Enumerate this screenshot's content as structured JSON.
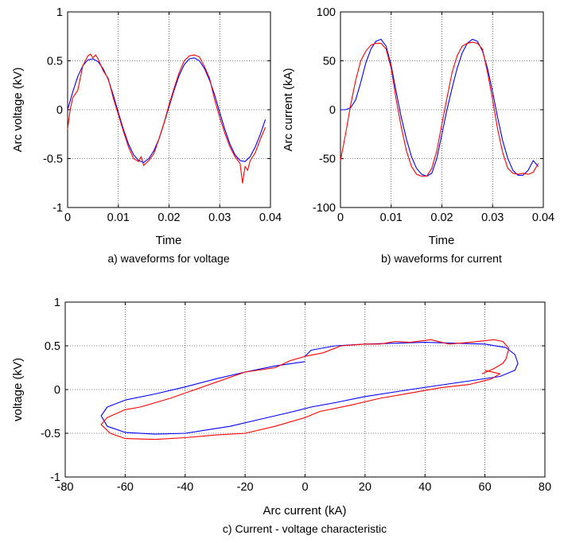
{
  "chart_data": [
    {
      "id": "a",
      "type": "line",
      "caption": "a) waveforms for voltage",
      "xlabel": "Time",
      "ylabel": "Arc voltage (kV)",
      "xlim": [
        0,
        0.04
      ],
      "ylim": [
        -1,
        1
      ],
      "xticks": [
        "0",
        "0.01",
        "0.02",
        "0.03",
        "0.04"
      ],
      "yticks": [
        "-1",
        "-0.5",
        "0",
        "0.5",
        "1"
      ],
      "grid": true,
      "series": [
        {
          "color": "#0000ff",
          "x": [
            0,
            0.001,
            0.002,
            0.003,
            0.004,
            0.005,
            0.006,
            0.007,
            0.008,
            0.009,
            0.01,
            0.011,
            0.012,
            0.013,
            0.014,
            0.015,
            0.016,
            0.017,
            0.018,
            0.019,
            0.02,
            0.021,
            0.022,
            0.023,
            0.024,
            0.025,
            0.026,
            0.027,
            0.028,
            0.029,
            0.03,
            0.031,
            0.032,
            0.033,
            0.034,
            0.035,
            0.036,
            0.037,
            0.038,
            0.039
          ],
          "y": [
            0.0,
            0.18,
            0.34,
            0.45,
            0.51,
            0.52,
            0.49,
            0.42,
            0.31,
            0.15,
            -0.03,
            -0.2,
            -0.35,
            -0.46,
            -0.52,
            -0.54,
            -0.5,
            -0.42,
            -0.3,
            -0.14,
            0.03,
            0.2,
            0.35,
            0.46,
            0.52,
            0.53,
            0.5,
            0.42,
            0.3,
            0.15,
            -0.03,
            -0.2,
            -0.35,
            -0.46,
            -0.52,
            -0.53,
            -0.48,
            -0.38,
            -0.25,
            -0.1
          ]
        },
        {
          "color": "#ff0000",
          "x": [
            0,
            0.0005,
            0.001,
            0.002,
            0.003,
            0.004,
            0.0045,
            0.005,
            0.0055,
            0.006,
            0.007,
            0.008,
            0.009,
            0.01,
            0.011,
            0.012,
            0.013,
            0.014,
            0.0145,
            0.015,
            0.016,
            0.017,
            0.018,
            0.019,
            0.02,
            0.021,
            0.022,
            0.023,
            0.024,
            0.025,
            0.026,
            0.027,
            0.028,
            0.029,
            0.03,
            0.031,
            0.032,
            0.033,
            0.034,
            0.0345,
            0.035,
            0.0355,
            0.036,
            0.037,
            0.038,
            0.039
          ],
          "y": [
            -0.2,
            0.0,
            0.12,
            0.2,
            0.45,
            0.55,
            0.57,
            0.53,
            0.56,
            0.52,
            0.4,
            0.32,
            0.12,
            -0.05,
            -0.22,
            -0.38,
            -0.5,
            -0.53,
            -0.48,
            -0.57,
            -0.52,
            -0.45,
            -0.3,
            -0.14,
            0.05,
            0.22,
            0.38,
            0.5,
            0.55,
            0.56,
            0.54,
            0.44,
            0.32,
            0.1,
            -0.08,
            -0.24,
            -0.38,
            -0.48,
            -0.55,
            -0.75,
            -0.58,
            -0.62,
            -0.52,
            -0.44,
            -0.3,
            -0.18
          ]
        }
      ]
    },
    {
      "id": "b",
      "type": "line",
      "caption": "b) waveforms for current",
      "xlabel": "Time",
      "ylabel": "Arc current (kA)",
      "xlim": [
        0,
        0.04
      ],
      "ylim": [
        -100,
        100
      ],
      "xticks": [
        "0",
        "0.01",
        "0.02",
        "0.03",
        "0.04"
      ],
      "yticks": [
        "-100",
        "-50",
        "0",
        "50",
        "100"
      ],
      "grid": true,
      "series": [
        {
          "color": "#0000ff",
          "x": [
            0,
            0.001,
            0.002,
            0.003,
            0.004,
            0.005,
            0.006,
            0.007,
            0.008,
            0.009,
            0.01,
            0.011,
            0.012,
            0.013,
            0.014,
            0.015,
            0.016,
            0.017,
            0.018,
            0.019,
            0.02,
            0.021,
            0.022,
            0.023,
            0.024,
            0.025,
            0.026,
            0.027,
            0.028,
            0.029,
            0.03,
            0.031,
            0.032,
            0.033,
            0.034,
            0.035,
            0.036,
            0.037,
            0.038,
            0.039
          ],
          "y": [
            0,
            0,
            2,
            10,
            28,
            48,
            62,
            70,
            72,
            65,
            45,
            18,
            -8,
            -30,
            -48,
            -60,
            -66,
            -68,
            -65,
            -50,
            -25,
            0,
            22,
            42,
            58,
            68,
            72,
            70,
            60,
            42,
            18,
            -8,
            -32,
            -50,
            -62,
            -67,
            -67,
            -62,
            -52,
            -58
          ]
        },
        {
          "color": "#ff0000",
          "x": [
            0,
            0.001,
            0.002,
            0.003,
            0.004,
            0.005,
            0.006,
            0.007,
            0.008,
            0.009,
            0.01,
            0.011,
            0.012,
            0.013,
            0.014,
            0.015,
            0.016,
            0.017,
            0.018,
            0.019,
            0.02,
            0.021,
            0.022,
            0.023,
            0.024,
            0.025,
            0.026,
            0.027,
            0.028,
            0.029,
            0.03,
            0.031,
            0.032,
            0.033,
            0.034,
            0.035,
            0.036,
            0.037,
            0.038,
            0.039
          ],
          "y": [
            -52,
            -25,
            5,
            30,
            50,
            60,
            66,
            68,
            68,
            62,
            42,
            10,
            -18,
            -42,
            -58,
            -66,
            -68,
            -68,
            -60,
            -42,
            -15,
            12,
            38,
            55,
            65,
            68,
            69,
            68,
            62,
            38,
            10,
            -20,
            -44,
            -60,
            -65,
            -66,
            -65,
            -66,
            -64,
            -55
          ]
        }
      ]
    },
    {
      "id": "c",
      "type": "line",
      "caption": "c) Current - voltage characteristic",
      "xlabel": "Arc current (kA)",
      "ylabel": "voltage (kV)",
      "xlim": [
        -80,
        80
      ],
      "ylim": [
        -1,
        1
      ],
      "xticks": [
        "-80",
        "-60",
        "-40",
        "-20",
        "0",
        "20",
        "40",
        "60",
        "80"
      ],
      "yticks": [
        "-1",
        "-0.5",
        "0",
        "0.5",
        "1"
      ],
      "grid": true,
      "series": [
        {
          "color": "#0000ff",
          "x": [
            0,
            2,
            10,
            20,
            30,
            40,
            50,
            60,
            67,
            70,
            71,
            70,
            65,
            55,
            45,
            35,
            20,
            10,
            2,
            -5,
            -15,
            -25,
            -40,
            -50,
            -60,
            -66,
            -68,
            -66,
            -60,
            -50,
            -40,
            -30,
            -20,
            -10,
            0
          ],
          "y": [
            0.38,
            0.45,
            0.5,
            0.52,
            0.53,
            0.54,
            0.53,
            0.52,
            0.48,
            0.4,
            0.3,
            0.22,
            0.15,
            0.1,
            0.05,
            0.0,
            -0.08,
            -0.15,
            -0.2,
            -0.26,
            -0.34,
            -0.42,
            -0.5,
            -0.51,
            -0.49,
            -0.42,
            -0.3,
            -0.2,
            -0.12,
            -0.05,
            0.03,
            0.12,
            0.2,
            0.27,
            0.32
          ]
        },
        {
          "color": "#ff0000",
          "x": [
            59,
            63,
            66,
            67,
            68,
            66,
            63,
            55,
            48,
            42,
            35,
            30,
            25,
            20,
            12,
            6,
            0,
            -5,
            -10,
            -20,
            -30,
            -40,
            -45,
            -50,
            -55,
            -60,
            -66,
            -68,
            -65,
            -60,
            -50,
            -40,
            -30,
            -20,
            -10,
            0,
            5,
            15,
            25,
            35,
            45,
            55,
            62,
            65,
            60
          ],
          "y": [
            0.18,
            0.24,
            0.3,
            0.35,
            0.47,
            0.55,
            0.57,
            0.54,
            0.52,
            0.57,
            0.54,
            0.55,
            0.52,
            0.52,
            0.5,
            0.42,
            0.38,
            0.33,
            0.25,
            0.2,
            0.08,
            -0.04,
            -0.1,
            -0.15,
            -0.2,
            -0.23,
            -0.32,
            -0.4,
            -0.5,
            -0.56,
            -0.57,
            -0.55,
            -0.52,
            -0.5,
            -0.42,
            -0.32,
            -0.25,
            -0.18,
            -0.1,
            -0.04,
            0.02,
            0.06,
            0.12,
            0.18,
            0.22
          ]
        }
      ]
    }
  ]
}
